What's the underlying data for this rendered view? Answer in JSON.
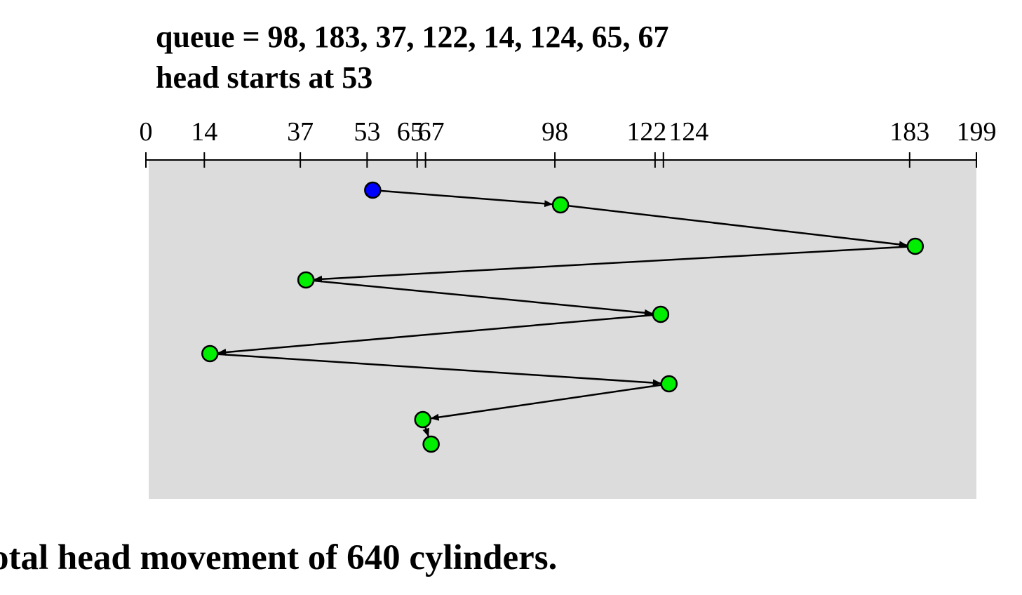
{
  "header": {
    "queue_text": "queue = 98, 183, 37, 122, 14, 124, 65, 67",
    "head_text": "head starts at 53"
  },
  "footer": {
    "total_text": "otal head movement of 640 cylinders."
  },
  "diagram": {
    "axis_min": 0,
    "axis_max": 199,
    "tick_values": [
      0,
      14,
      37,
      53,
      65,
      67,
      98,
      122,
      124,
      183,
      199
    ],
    "tick_labels": [
      "0",
      "14",
      "37",
      "53",
      "65",
      "67",
      "98",
      "122",
      "124",
      "183",
      "199"
    ],
    "head_start": 53,
    "visit_order": [
      53,
      98,
      183,
      37,
      122,
      14,
      124,
      65,
      67
    ],
    "colors": {
      "panel": "#dcdcdc",
      "start_node": "#0000ff",
      "request_node": "#00ee00",
      "line": "#000000"
    }
  }
}
